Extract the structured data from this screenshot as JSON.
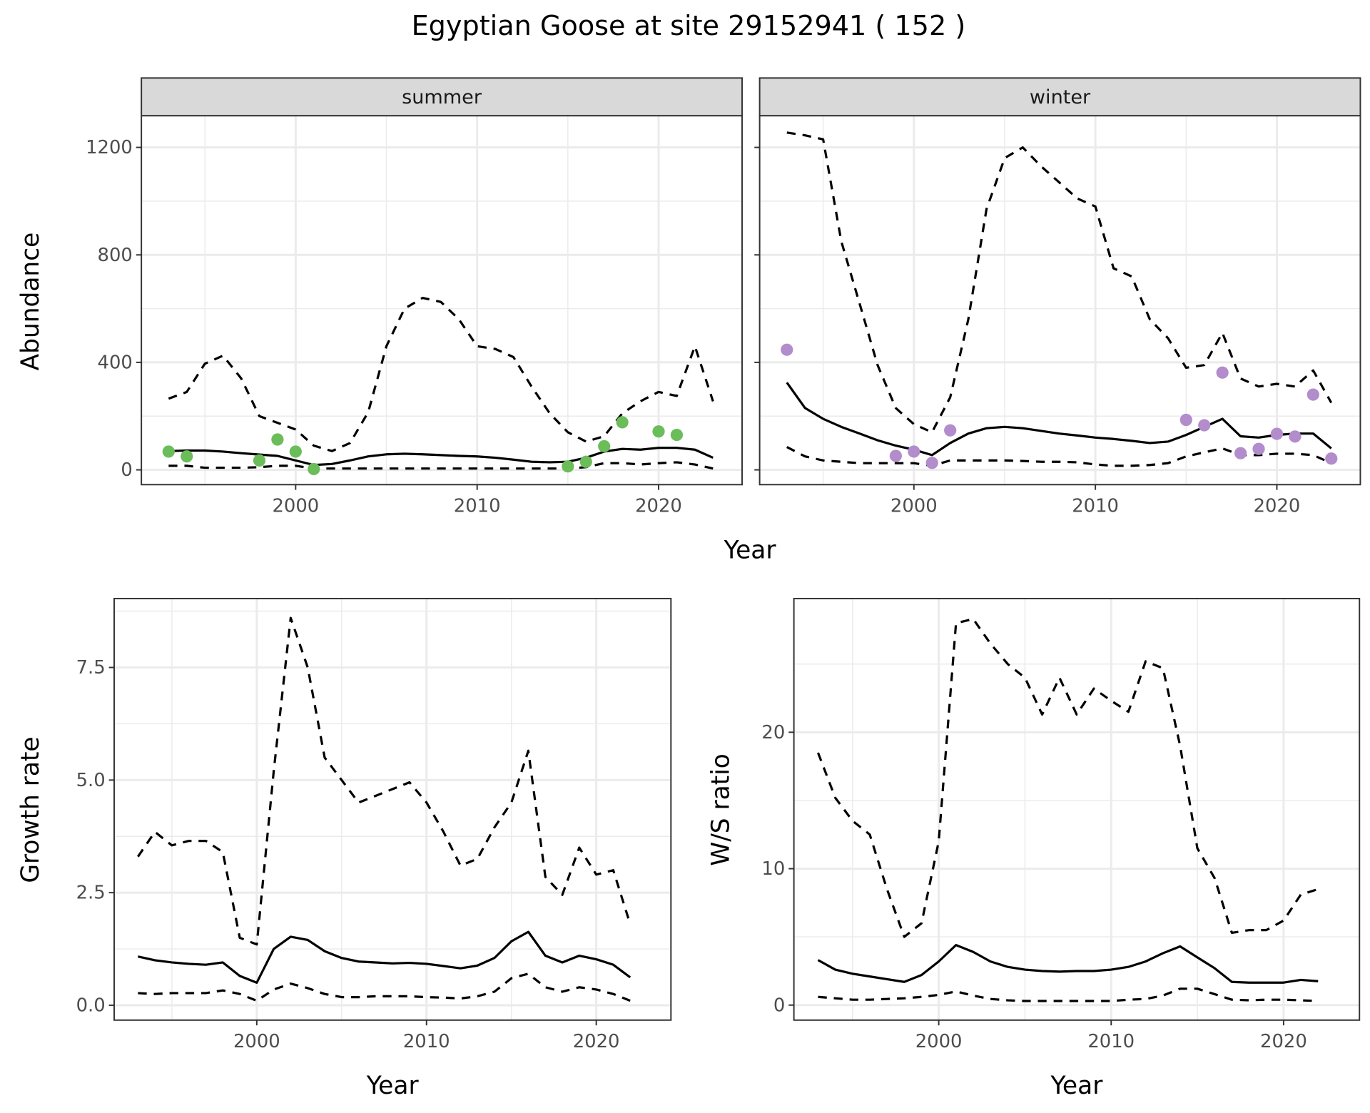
{
  "title": "Egyptian Goose at site 29152941 ( 152 )",
  "colors": {
    "summer_points": "#6bbd5a",
    "winter_points": "#b38ccc",
    "lines": "#000000",
    "strip_bg": "#d9d9d9",
    "grid": "#ebebeb"
  },
  "top_row": {
    "xlabel": "Year",
    "ylabel": "Abundance"
  },
  "chart_data": [
    {
      "type": "line",
      "strip": "summer",
      "xlim": [
        1991.5,
        2024.6
      ],
      "ylim": [
        -55,
        1318
      ],
      "xticks": [
        2000,
        2010,
        2020
      ],
      "yticks": [
        0,
        400,
        800,
        1200
      ],
      "show_yticks": true,
      "grid": true,
      "line_styles": {
        "median": "solid",
        "upper": "dashed",
        "lower": "dashed"
      },
      "x": [
        1993,
        1994,
        1995,
        1996,
        1997,
        1998,
        1999,
        2000,
        2001,
        2002,
        2003,
        2004,
        2005,
        2006,
        2007,
        2008,
        2009,
        2010,
        2011,
        2012,
        2013,
        2014,
        2015,
        2016,
        2017,
        2018,
        2019,
        2020,
        2021,
        2022,
        2023
      ],
      "median": [
        70,
        72,
        72,
        68,
        62,
        57,
        52,
        35,
        18,
        22,
        35,
        50,
        58,
        60,
        58,
        55,
        52,
        50,
        45,
        38,
        30,
        28,
        30,
        45,
        68,
        78,
        75,
        82,
        82,
        75,
        45
      ],
      "upper": [
        265,
        290,
        395,
        425,
        340,
        200,
        175,
        150,
        90,
        70,
        100,
        215,
        460,
        600,
        640,
        625,
        560,
        460,
        450,
        420,
        310,
        210,
        140,
        105,
        125,
        210,
        255,
        290,
        275,
        460,
        255
      ],
      "lower": [
        15,
        15,
        8,
        8,
        8,
        10,
        15,
        15,
        5,
        5,
        5,
        5,
        5,
        5,
        5,
        5,
        5,
        5,
        5,
        5,
        5,
        5,
        5,
        10,
        25,
        25,
        20,
        25,
        28,
        20,
        5
      ],
      "points": {
        "x": [
          1993,
          1994,
          1998,
          1999,
          2000,
          2001,
          2015,
          2016,
          2017,
          2018,
          2020,
          2021
        ],
        "y": [
          68,
          50,
          35,
          113,
          68,
          3,
          13,
          30,
          88,
          177,
          143,
          130
        ]
      }
    },
    {
      "type": "line",
      "strip": "winter",
      "xlim": [
        1991.5,
        2024.6
      ],
      "ylim": [
        -55,
        1318
      ],
      "xticks": [
        2000,
        2010,
        2020
      ],
      "yticks": [
        0,
        400,
        800,
        1200
      ],
      "show_yticks": false,
      "grid": true,
      "line_styles": {
        "median": "solid",
        "upper": "dashed",
        "lower": "dashed"
      },
      "x": [
        1993,
        1994,
        1995,
        1996,
        1997,
        1998,
        1999,
        2000,
        2001,
        2002,
        2003,
        2004,
        2005,
        2006,
        2007,
        2008,
        2009,
        2010,
        2011,
        2012,
        2013,
        2014,
        2015,
        2016,
        2017,
        2018,
        2019,
        2020,
        2021,
        2022,
        2023
      ],
      "median": [
        325,
        230,
        190,
        160,
        135,
        110,
        90,
        75,
        55,
        100,
        135,
        155,
        160,
        155,
        145,
        135,
        128,
        120,
        115,
        108,
        100,
        105,
        130,
        160,
        190,
        125,
        120,
        130,
        135,
        135,
        80
      ],
      "upper": [
        1255,
        1245,
        1230,
        850,
        620,
        390,
        230,
        170,
        140,
        270,
        560,
        970,
        1160,
        1200,
        1130,
        1070,
        1010,
        980,
        750,
        720,
        560,
        490,
        380,
        390,
        510,
        340,
        310,
        320,
        310,
        370,
        250
      ],
      "lower": [
        85,
        50,
        35,
        30,
        25,
        25,
        25,
        25,
        15,
        35,
        35,
        35,
        35,
        33,
        30,
        30,
        28,
        20,
        15,
        15,
        18,
        25,
        50,
        65,
        80,
        55,
        55,
        60,
        60,
        55,
        25
      ],
      "points": {
        "x": [
          1993,
          1999,
          2000,
          2001,
          2002,
          2015,
          2016,
          2017,
          2018,
          2019,
          2020,
          2021,
          2022,
          2023
        ],
        "y": [
          447,
          52,
          68,
          26,
          147,
          186,
          166,
          362,
          62,
          78,
          134,
          124,
          280,
          42
        ]
      }
    },
    {
      "type": "line",
      "strip": "",
      "xlim": [
        1991.6,
        2024.4
      ],
      "ylim": [
        -0.33,
        9.03
      ],
      "xticks": [
        2000,
        2010,
        2020
      ],
      "yticks": [
        0.0,
        2.5,
        5.0,
        7.5
      ],
      "ytick_labels": [
        "0.0",
        "2.5",
        "5.0",
        "7.5"
      ],
      "show_yticks": true,
      "xlabel": "Year",
      "ylabel": "Growth rate",
      "grid": true,
      "line_styles": {
        "median": "solid",
        "upper": "dashed",
        "lower": "dashed"
      },
      "x": [
        1993,
        1994,
        1995,
        1996,
        1997,
        1998,
        1999,
        2000,
        2001,
        2002,
        2003,
        2004,
        2005,
        2006,
        2007,
        2008,
        2009,
        2010,
        2011,
        2012,
        2013,
        2014,
        2015,
        2016,
        2017,
        2018,
        2019,
        2020,
        2021,
        2022
      ],
      "median": [
        1.08,
        1.0,
        0.95,
        0.92,
        0.9,
        0.95,
        0.65,
        0.5,
        1.25,
        1.52,
        1.45,
        1.2,
        1.05,
        0.97,
        0.95,
        0.93,
        0.94,
        0.92,
        0.87,
        0.82,
        0.88,
        1.05,
        1.42,
        1.63,
        1.1,
        0.95,
        1.1,
        1.02,
        0.9,
        0.62
      ],
      "upper": [
        3.3,
        3.85,
        3.55,
        3.65,
        3.65,
        3.4,
        1.5,
        1.35,
        5.2,
        8.6,
        7.5,
        5.5,
        5.0,
        4.5,
        4.65,
        4.8,
        4.95,
        4.5,
        3.85,
        3.1,
        3.25,
        3.95,
        4.5,
        5.65,
        2.85,
        2.45,
        3.5,
        2.9,
        3.0,
        1.8
      ],
      "lower": [
        0.27,
        0.25,
        0.27,
        0.27,
        0.27,
        0.33,
        0.25,
        0.1,
        0.35,
        0.48,
        0.38,
        0.25,
        0.18,
        0.18,
        0.2,
        0.2,
        0.2,
        0.18,
        0.17,
        0.15,
        0.2,
        0.3,
        0.6,
        0.7,
        0.4,
        0.3,
        0.4,
        0.35,
        0.25,
        0.1
      ]
    },
    {
      "type": "line",
      "strip": "",
      "xlim": [
        1991.6,
        2024.4
      ],
      "ylim": [
        -1.1,
        29.8
      ],
      "xticks": [
        2000,
        2010,
        2020
      ],
      "yticks": [
        0,
        10,
        20
      ],
      "ytick_labels": [
        "0",
        "10",
        "20"
      ],
      "show_yticks": true,
      "xlabel": "Year",
      "ylabel": "W/S ratio",
      "grid": true,
      "line_styles": {
        "median": "solid",
        "upper": "dashed",
        "lower": "dashed"
      },
      "x": [
        1993,
        1994,
        1995,
        1996,
        1997,
        1998,
        1999,
        2000,
        2001,
        2002,
        2003,
        2004,
        2005,
        2006,
        2007,
        2008,
        2009,
        2010,
        2011,
        2012,
        2013,
        2014,
        2015,
        2016,
        2017,
        2018,
        2019,
        2020,
        2021,
        2022
      ],
      "median": [
        3.3,
        2.6,
        2.3,
        2.1,
        1.9,
        1.7,
        2.2,
        3.2,
        4.4,
        3.9,
        3.2,
        2.8,
        2.6,
        2.5,
        2.45,
        2.5,
        2.5,
        2.6,
        2.8,
        3.2,
        3.8,
        4.3,
        3.5,
        2.7,
        1.7,
        1.65,
        1.65,
        1.65,
        1.85,
        1.75
      ],
      "upper": [
        18.5,
        15.2,
        13.5,
        12.5,
        8.5,
        5.0,
        6.0,
        12,
        28,
        28.3,
        26.5,
        25,
        24,
        21.3,
        24,
        21.3,
        23.2,
        22.3,
        21.5,
        25.2,
        24.7,
        19,
        11.5,
        9.3,
        5.3,
        5.5,
        5.5,
        6.2,
        8.1,
        8.5
      ],
      "lower": [
        0.6,
        0.5,
        0.4,
        0.4,
        0.45,
        0.5,
        0.6,
        0.75,
        1.0,
        0.7,
        0.45,
        0.35,
        0.3,
        0.3,
        0.3,
        0.3,
        0.3,
        0.3,
        0.4,
        0.45,
        0.7,
        1.2,
        1.2,
        0.8,
        0.4,
        0.35,
        0.4,
        0.4,
        0.35,
        0.3
      ]
    }
  ]
}
